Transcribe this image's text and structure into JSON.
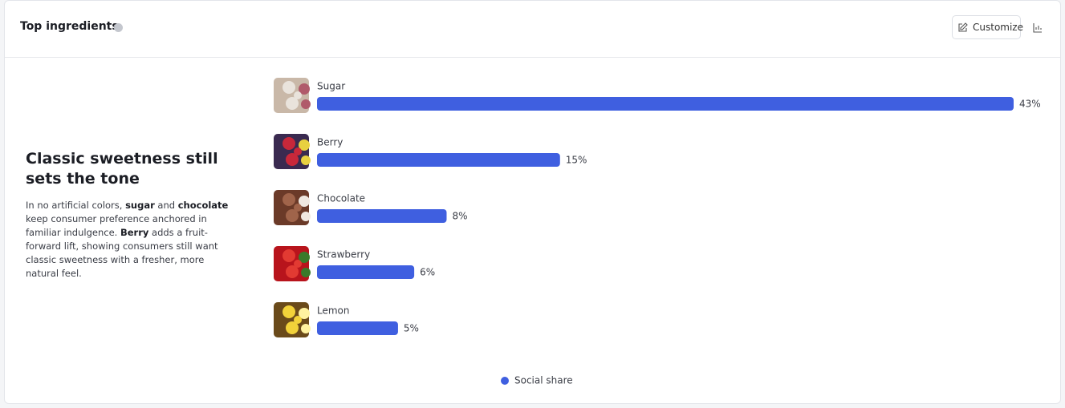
{
  "header": {
    "title": "Top ingredients",
    "button": "Customize"
  },
  "insight": {
    "heading": "Classic sweetness still sets the tone",
    "body": [
      "In no artificial colors, ",
      "sugar",
      " and ",
      "chocolate",
      " keep consumer preference anchored in familiar indulgence. ",
      "Berry",
      " adds a fruit-forward lift, showing consumers still want classic sweetness with a fresher, more natural feel."
    ]
  },
  "chart_data": {
    "type": "hbar",
    "categories": [
      "Sugar",
      "Berry",
      "Chocolate",
      "Strawberry",
      "Lemon"
    ],
    "series": [
      {
        "name": "Social share",
        "color": "#3f5fe0",
        "values": [
          43,
          15,
          8,
          6,
          5
        ],
        "value_labels": [
          "43%",
          "15%",
          "8%",
          "6%",
          "5%"
        ]
      }
    ]
  }
}
